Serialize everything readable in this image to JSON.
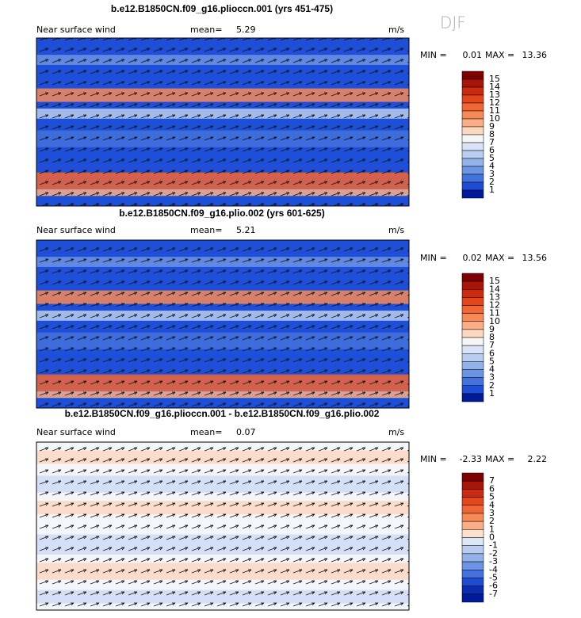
{
  "season": "DJF",
  "panels": [
    {
      "title": "b.e12.B1850CN.f09_g16.plioccn.001 (yrs 451-475)",
      "field_label": "Near surface wind",
      "mean_label": "mean=",
      "mean": 5.29,
      "units": "m/s",
      "min_label": "MIN =",
      "min": 0.01,
      "max_label": "MAX =",
      "max": 13.36,
      "levels": [
        15,
        14,
        13,
        12,
        11,
        10,
        9,
        8,
        7,
        6,
        5,
        4,
        3,
        2,
        1
      ],
      "colors": [
        "#7f0000",
        "#a81408",
        "#cc2a10",
        "#e4461c",
        "#f26535",
        "#f88a58",
        "#fbae85",
        "#fdd8c0",
        "#f6f6f6",
        "#d8e4f6",
        "#b8cdf0",
        "#94b2ea",
        "#6c94e4",
        "#4372de",
        "#1d4dd4",
        "#001a9a"
      ]
    },
    {
      "title": "b.e12.B1850CN.f09_g16.plio.002 (yrs 601-625)",
      "field_label": "Near surface wind",
      "mean_label": "mean=",
      "mean": 5.21,
      "units": "m/s",
      "min_label": "MIN =",
      "min": 0.02,
      "max_label": "MAX =",
      "max": 13.56,
      "levels": [
        15,
        14,
        13,
        12,
        11,
        10,
        9,
        8,
        7,
        6,
        5,
        4,
        3,
        2,
        1
      ],
      "colors": [
        "#7f0000",
        "#a81408",
        "#cc2a10",
        "#e4461c",
        "#f26535",
        "#f88a58",
        "#fbae85",
        "#fdd8c0",
        "#f6f6f6",
        "#d8e4f6",
        "#b8cdf0",
        "#94b2ea",
        "#6c94e4",
        "#4372de",
        "#1d4dd4",
        "#001a9a"
      ]
    },
    {
      "title": "b.e12.B1850CN.f09_g16.plioccn.001 - b.e12.B1850CN.f09_g16.plio.002",
      "field_label": "Near surface wind",
      "mean_label": "mean=",
      "mean": 0.07,
      "units": "m/s",
      "min_label": "MIN =",
      "min": -2.33,
      "max_label": "MAX =",
      "max": 2.22,
      "levels": [
        7,
        6,
        5,
        4,
        3,
        2,
        1,
        0,
        -1,
        -2,
        -3,
        -4,
        -5,
        -6,
        -7
      ],
      "colors": [
        "#7f0000",
        "#a81408",
        "#cc2a10",
        "#e4461c",
        "#f26535",
        "#f88a58",
        "#fbae85",
        "#fde0cc",
        "#dce8f8",
        "#b8cdf0",
        "#94b2ea",
        "#6c94e4",
        "#4372de",
        "#1d4dd4",
        "#0a2cb0",
        "#001a9a"
      ]
    }
  ]
}
